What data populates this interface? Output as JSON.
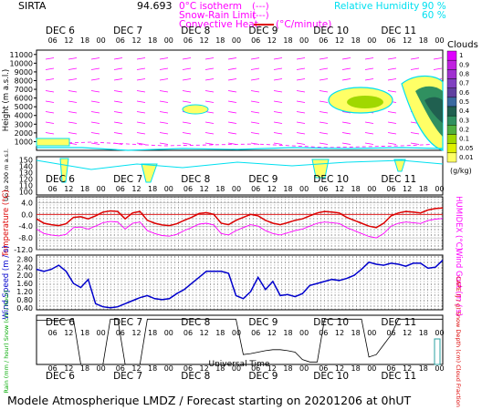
{
  "header": {
    "site": "SIRTA",
    "lon": "94.693",
    "isotherm": "0°C isotherm",
    "isotherm_key": "(---)",
    "snow_rain": "Snow-Rain Limit",
    "snow_rain_key": "(---)",
    "convective": "Convective Heat.",
    "convective_unit": "(°C/minute)",
    "rh_label": "Relative Humidity",
    "rh_90": "90 %",
    "rh_60": "60 %"
  },
  "days": [
    "DEC 6",
    "DEC 7",
    "DEC 8",
    "DEC 9",
    "DEC 10",
    "DEC 11"
  ],
  "hour_ticks": [
    "06",
    "12",
    "18",
    "00"
  ],
  "footer": {
    "text": "Modele Atmospherique LMDZ / Forecast starting on 20201206 at 0hUT",
    "time_axis": "Universal Time"
  },
  "colors": {
    "accent_magenta": "#ff00ff",
    "red": "#dd0000",
    "blue": "#0000cc",
    "cyan": "#00e0f0"
  },
  "chart_data": [
    {
      "type": "heatmap",
      "name_id": "cloud-panel",
      "ylabel": "Height (m a.s.l.)",
      "yticks": [
        1000,
        2000,
        3000,
        4000,
        5000,
        6000,
        7000,
        8000,
        9000,
        10000,
        11000
      ],
      "ylim": [
        0,
        11500
      ],
      "legend_title": "Clouds",
      "legend_unit": "(g/kg)",
      "legend_levels": [
        "0.01",
        "0.05",
        "0.1",
        "0.2",
        "0.3",
        "0.4",
        "0.5",
        "0.6",
        "0.7",
        "0.8",
        "0.9",
        "1"
      ],
      "legend_colors": [
        "#ffff66",
        "#e0f000",
        "#a0d800",
        "#50b040",
        "#309060",
        "#206050",
        "#3a6aa0",
        "#6040a0",
        "#8040c0",
        "#a030d0",
        "#c020e0",
        "#e000ff"
      ]
    },
    {
      "type": "heatmap",
      "name_id": "lowlevel-panel",
      "ylabel": "Up to 200 m a.s.l.",
      "yticks": [
        100,
        110,
        120,
        130,
        140,
        150
      ],
      "ylim": [
        95,
        155
      ]
    },
    {
      "type": "line",
      "name_id": "temperature-panel",
      "ylabel": "Temperature (°C)",
      "ylabel_right": "HUMIDEX (°C)",
      "yticks": [
        "4.0",
        "0.0",
        "-4.0",
        "-8.0",
        "-12.0"
      ],
      "ylim": [
        -12,
        6
      ],
      "series": [
        {
          "values": [
            -1.5,
            -3.0,
            -3.5,
            -3.8,
            -3.2,
            -1.0,
            -0.8,
            -1.5,
            -0.5,
            0.8,
            1.2,
            1.0,
            -1.5,
            0.5,
            1.0,
            -2.0,
            -3.0,
            -3.6,
            -3.8,
            -3.2,
            -2.0,
            -1.0,
            0.3,
            0.6,
            0.0,
            -3.0,
            -3.5,
            -2.0,
            -1.0,
            0.0,
            -0.5,
            -2.0,
            -3.0,
            -3.5,
            -2.8,
            -2.0,
            -1.5,
            -0.5,
            0.5,
            1.0,
            0.8,
            0.5,
            -1.0,
            -2.0,
            -3.0,
            -4.0,
            -4.5,
            -3.0,
            -0.5,
            0.5,
            1.0,
            0.8,
            0.5,
            1.5,
            2.0,
            2.2
          ]
        },
        {
          "values": [
            -5.0,
            -6.5,
            -7.0,
            -7.3,
            -6.8,
            -4.5,
            -4.3,
            -5.0,
            -4.0,
            -2.8,
            -2.4,
            -2.6,
            -5.0,
            -3.0,
            -2.6,
            -5.5,
            -6.5,
            -7.2,
            -7.4,
            -6.8,
            -5.5,
            -4.5,
            -3.3,
            -3.0,
            -3.6,
            -6.5,
            -7.0,
            -5.5,
            -4.5,
            -3.5,
            -4.0,
            -5.5,
            -6.5,
            -7.0,
            -6.3,
            -5.5,
            -5.0,
            -4.0,
            -3.0,
            -2.6,
            -2.8,
            -3.1,
            -4.5,
            -5.5,
            -6.5,
            -7.5,
            -8.0,
            -6.5,
            -4.0,
            -3.0,
            -2.6,
            -2.8,
            -3.1,
            -2.1,
            -1.6,
            -1.4
          ]
        }
      ]
    },
    {
      "type": "line",
      "name_id": "wind-panel",
      "ylabel": "Wind Speed (m / s)",
      "ylabel_right": "Wind Gust (m / s)",
      "yticks": [
        "2.80",
        "2.40",
        "2.00",
        "1.60",
        "1.20",
        "0.80",
        "0.40"
      ],
      "ylim": [
        0.3,
        3.0
      ],
      "series": [
        {
          "values": [
            2.3,
            2.2,
            2.3,
            2.5,
            2.2,
            1.6,
            1.4,
            1.8,
            0.6,
            0.45,
            0.4,
            0.45,
            0.6,
            0.75,
            0.9,
            1.0,
            0.85,
            0.8,
            0.85,
            1.1,
            1.3,
            1.6,
            1.9,
            2.2,
            2.2,
            2.2,
            2.1,
            1.0,
            0.85,
            1.2,
            1.9,
            1.3,
            1.7,
            1.0,
            1.05,
            0.95,
            1.1,
            1.5,
            1.6,
            1.7,
            1.8,
            1.75,
            1.85,
            2.0,
            2.3,
            2.65,
            2.55,
            2.5,
            2.6,
            2.55,
            2.45,
            2.6,
            2.6,
            2.35,
            2.4,
            2.75
          ]
        }
      ]
    },
    {
      "type": "line",
      "name_id": "precip-panel",
      "ylabel_left": "Rain (mm / hour) Snow (cm / hour)",
      "ylabel_right": "CAPE (J / g) Snow Depth (cm) Cloud Fraction",
      "series": [
        {
          "values": [
            0.9,
            0.9,
            0.9,
            0.9,
            0.9,
            0.92,
            0.0,
            0.0,
            0.0,
            0.0,
            0.92,
            0.92,
            0.0,
            0.0,
            0.0,
            0.92,
            0.92,
            0.92,
            0.92,
            0.92,
            0.92,
            0.92,
            0.92,
            0.92,
            0.92,
            0.92,
            0.92,
            0.92,
            0.2,
            0.22,
            0.25,
            0.28,
            0.3,
            0.3,
            0.28,
            0.25,
            0.1,
            0.05,
            0.05,
            0.92,
            0.92,
            0.92,
            0.92,
            0.92,
            0.92,
            0.15,
            0.2,
            0.4,
            0.6,
            0.92,
            0.92,
            0.92,
            0.92,
            0.92,
            0.92,
            0.92
          ]
        }
      ]
    }
  ]
}
